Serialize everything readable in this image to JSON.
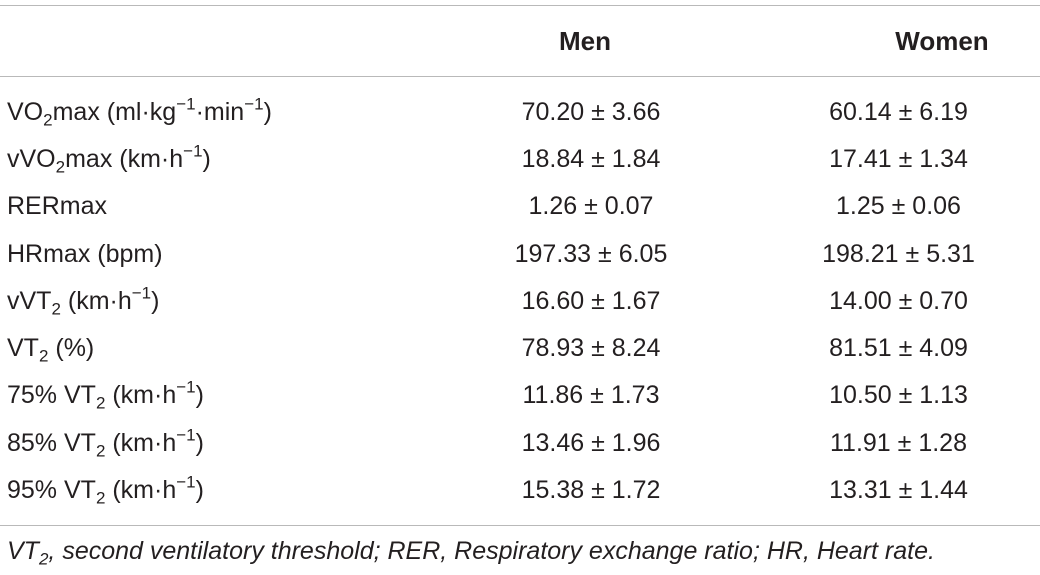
{
  "header": {
    "col_men": "Men",
    "col_women": "Women"
  },
  "rows": [
    {
      "label": {
        "pre": "VO",
        "sub": "2",
        "mid": "max (ml·kg",
        "sup1": "−1",
        "mid2": "·min",
        "sup2": "−1",
        "post": ")"
      },
      "men": "70.20 ± 3.66",
      "women": "60.14 ± 6.19"
    },
    {
      "label": {
        "pre": "vVO",
        "sub": "2",
        "mid": "max (km·h",
        "sup1": "−1",
        "post": ")"
      },
      "men": "18.84 ± 1.84",
      "women": "17.41 ± 1.34"
    },
    {
      "label": {
        "pre": "RERmax"
      },
      "men": "1.26 ± 0.07",
      "women": "1.25 ± 0.06"
    },
    {
      "label": {
        "pre": "HRmax (bpm)"
      },
      "men": "197.33 ± 6.05",
      "women": "198.21 ± 5.31"
    },
    {
      "label": {
        "pre": "vVT",
        "sub": "2",
        "mid": " (km·h",
        "sup1": "−1",
        "post": ")"
      },
      "men": "16.60 ± 1.67",
      "women": "14.00 ± 0.70"
    },
    {
      "label": {
        "pre": "VT",
        "sub": "2",
        "mid": " (%)"
      },
      "men": "78.93 ± 8.24",
      "women": "81.51 ± 4.09"
    },
    {
      "label": {
        "pre": "75% VT",
        "sub": "2",
        "mid": " (km·h",
        "sup1": "−1",
        "post": ")"
      },
      "men": "11.86 ± 1.73",
      "women": "10.50 ± 1.13"
    },
    {
      "label": {
        "pre": "85% VT",
        "sub": "2",
        "mid": " (km·h",
        "sup1": "−1",
        "post": ")"
      },
      "men": "13.46 ± 1.96",
      "women": "11.91 ± 1.28"
    },
    {
      "label": {
        "pre": "95% VT",
        "sub": "2",
        "mid": " (km·h",
        "sup1": "−1",
        "post": ")"
      },
      "men": "15.38 ± 1.72",
      "women": "13.31 ± 1.44"
    }
  ],
  "footnote": {
    "pre": "VT",
    "sub": "2",
    "post": ", second ventilatory threshold; RER, Respiratory exchange ratio; HR, Heart rate."
  }
}
